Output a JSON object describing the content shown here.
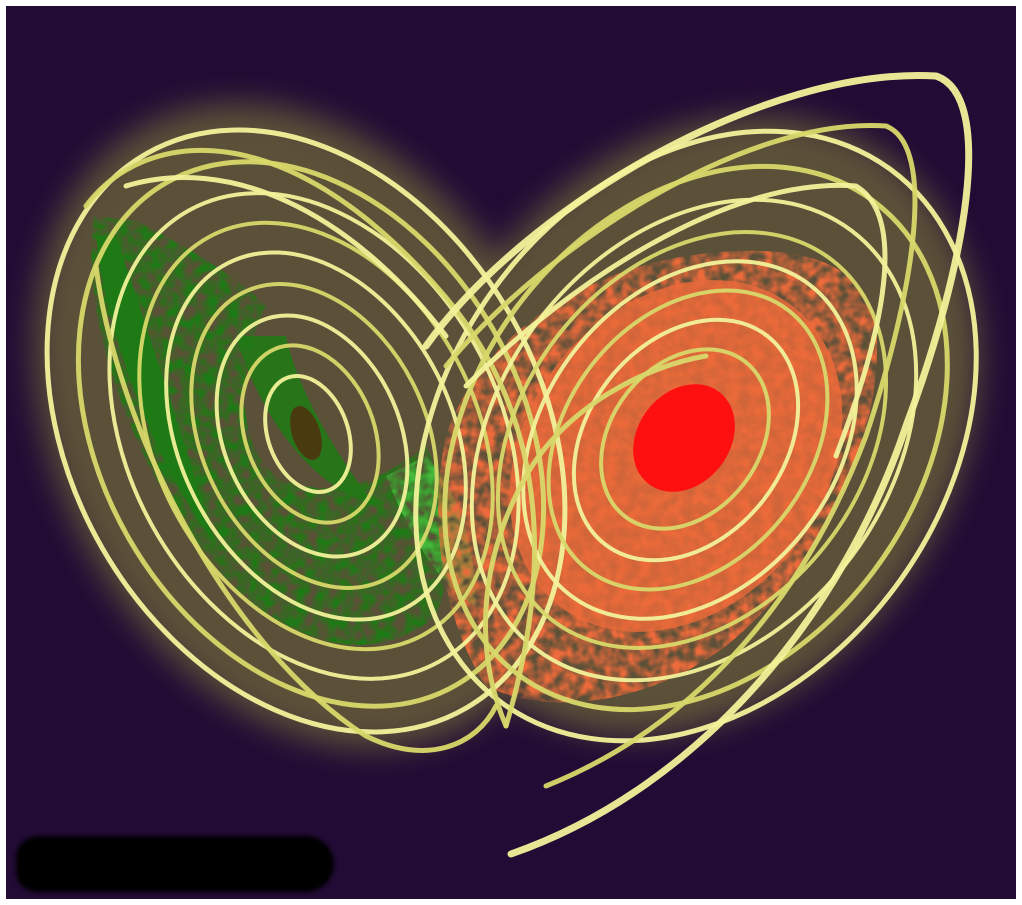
{
  "scene": {
    "subject": "lorenz-attractor-butterfly",
    "colors": {
      "background": "#220b35",
      "trajectory": "#d8d86a",
      "trajectory_highlight": "#f2f29a",
      "glow": "#8a8a3a",
      "left_lobe_fill": "#1e7a14",
      "left_lobe_light": "#46b83a",
      "right_lobe_fill": "#ec6a3a",
      "right_lobe_core": "#ff1010",
      "left_center": "#4a3a10",
      "occlusion": "#000000"
    }
  }
}
